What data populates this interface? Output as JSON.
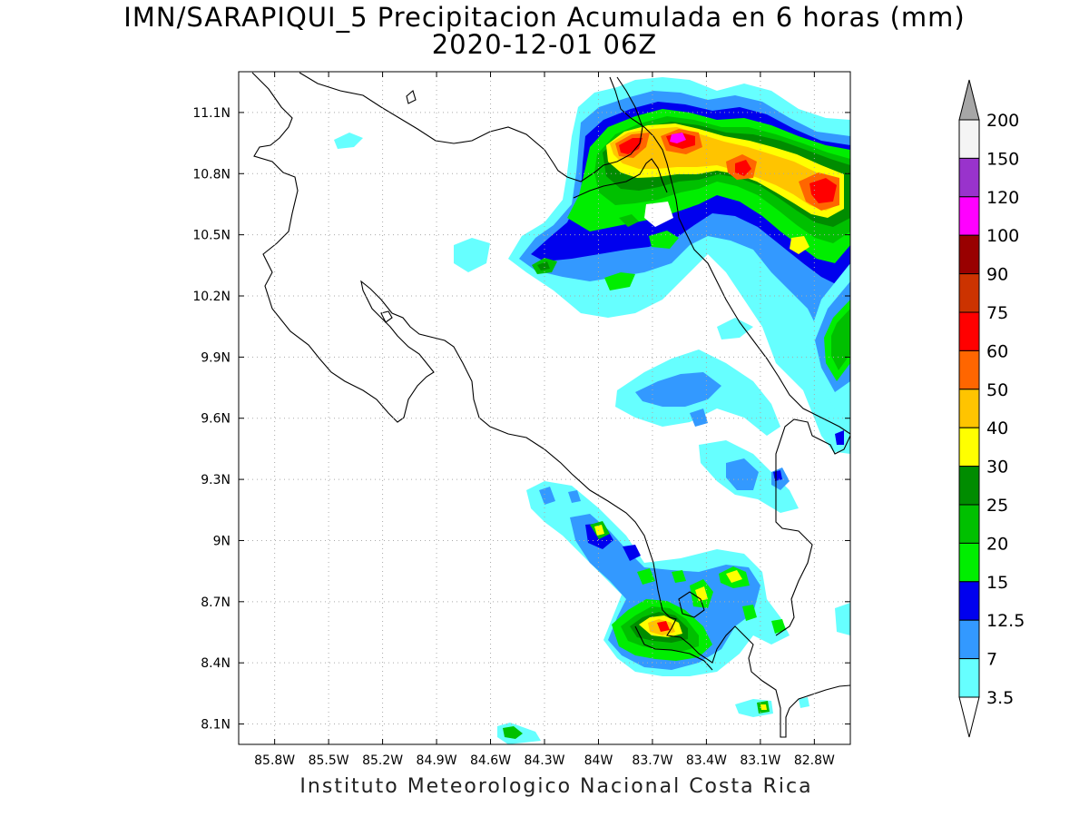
{
  "header": {
    "title": "IMN/SARAPIQUI_5 Precipitacion Acumulada en 6 horas (mm)",
    "subtitle": "2020-12-01 06Z"
  },
  "footer": {
    "credit": "Instituto Meteorologico Nacional Costa Rica"
  },
  "map": {
    "lon_range": [
      -86.0,
      -82.6
    ],
    "lat_range": [
      8.0,
      11.3
    ],
    "lon_ticks": [
      {
        "value": -85.8,
        "label": "85.8W"
      },
      {
        "value": -85.5,
        "label": "85.5W"
      },
      {
        "value": -85.2,
        "label": "85.2W"
      },
      {
        "value": -84.9,
        "label": "84.9W"
      },
      {
        "value": -84.6,
        "label": "84.6W"
      },
      {
        "value": -84.3,
        "label": "84.3W"
      },
      {
        "value": -84.0,
        "label": "84W"
      },
      {
        "value": -83.7,
        "label": "83.7W"
      },
      {
        "value": -83.4,
        "label": "83.4W"
      },
      {
        "value": -83.1,
        "label": "83.1W"
      },
      {
        "value": -82.8,
        "label": "82.8W"
      }
    ],
    "lat_ticks": [
      {
        "value": 11.1,
        "label": "11.1N"
      },
      {
        "value": 10.8,
        "label": "10.8N"
      },
      {
        "value": 10.5,
        "label": "10.5N"
      },
      {
        "value": 10.2,
        "label": "10.2N"
      },
      {
        "value": 9.9,
        "label": "9.9N"
      },
      {
        "value": 9.6,
        "label": "9.6N"
      },
      {
        "value": 9.3,
        "label": "9.3N"
      },
      {
        "value": 9.0,
        "label": "9N"
      },
      {
        "value": 8.7,
        "label": "8.7N"
      },
      {
        "value": 8.4,
        "label": "8.4N"
      },
      {
        "value": 8.1,
        "label": "8.1N"
      }
    ],
    "grid": true
  },
  "legend": {
    "units": "mm",
    "levels": [
      {
        "label": "3.5",
        "color": "#66ffff"
      },
      {
        "label": "7",
        "color": "#3399ff"
      },
      {
        "label": "12.5",
        "color": "#0000ee"
      },
      {
        "label": "15",
        "color": "#00ee00"
      },
      {
        "label": "20",
        "color": "#00c000"
      },
      {
        "label": "25",
        "color": "#008c00"
      },
      {
        "label": "30",
        "color": "#ffff00"
      },
      {
        "label": "40",
        "color": "#ffc400"
      },
      {
        "label": "50",
        "color": "#ff6600"
      },
      {
        "label": "60",
        "color": "#ff0000"
      },
      {
        "label": "75",
        "color": "#cc3300"
      },
      {
        "label": "90",
        "color": "#990000"
      },
      {
        "label": "100",
        "color": "#ff00ff"
      },
      {
        "label": "120",
        "color": "#9933cc"
      },
      {
        "label": "150",
        "color": "#f4f4f4"
      },
      {
        "label": "200",
        "color": "#a6a6a6"
      }
    ],
    "below_color": "#ffffff",
    "above_color": "#a6a6a6"
  }
}
